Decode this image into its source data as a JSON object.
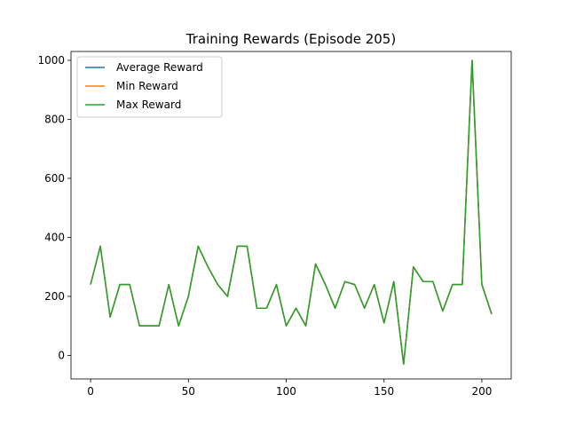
{
  "chart_data": {
    "type": "line",
    "title": "Training Rewards (Episode 205)",
    "xlabel": "",
    "ylabel": "",
    "xlim": [
      -10,
      215
    ],
    "ylim": [
      -80,
      1030
    ],
    "xticks": [
      0,
      50,
      100,
      150,
      200
    ],
    "yticks": [
      0,
      200,
      400,
      600,
      800,
      1000
    ],
    "grid": false,
    "legend_position": "top-left",
    "x": [
      0,
      5,
      10,
      15,
      20,
      25,
      30,
      35,
      40,
      45,
      50,
      55,
      60,
      65,
      70,
      75,
      80,
      85,
      90,
      95,
      100,
      105,
      110,
      115,
      120,
      125,
      130,
      135,
      140,
      145,
      150,
      155,
      160,
      165,
      170,
      175,
      180,
      185,
      190,
      195,
      200,
      205
    ],
    "series": [
      {
        "name": "Average Reward",
        "color": "#1f77b4",
        "values": [
          240,
          370,
          130,
          240,
          240,
          100,
          100,
          100,
          240,
          100,
          200,
          370,
          300,
          240,
          200,
          370,
          370,
          160,
          160,
          240,
          100,
          160,
          100,
          310,
          240,
          160,
          250,
          240,
          160,
          240,
          110,
          250,
          -30,
          300,
          250,
          250,
          150,
          240,
          240,
          1000,
          240,
          140
        ]
      },
      {
        "name": "Min Reward",
        "color": "#ff7f0e",
        "values": [
          240,
          370,
          130,
          240,
          240,
          100,
          100,
          100,
          240,
          100,
          200,
          370,
          300,
          240,
          200,
          370,
          370,
          160,
          160,
          240,
          100,
          160,
          100,
          310,
          240,
          160,
          250,
          240,
          160,
          240,
          110,
          250,
          -30,
          300,
          250,
          250,
          150,
          240,
          240,
          1000,
          240,
          140
        ]
      },
      {
        "name": "Max Reward",
        "color": "#2ca02c",
        "values": [
          240,
          370,
          130,
          240,
          240,
          100,
          100,
          100,
          240,
          100,
          200,
          370,
          300,
          240,
          200,
          370,
          370,
          160,
          160,
          240,
          100,
          160,
          100,
          310,
          240,
          160,
          250,
          240,
          160,
          240,
          110,
          250,
          -30,
          300,
          250,
          250,
          150,
          240,
          240,
          1000,
          240,
          140
        ]
      }
    ]
  }
}
